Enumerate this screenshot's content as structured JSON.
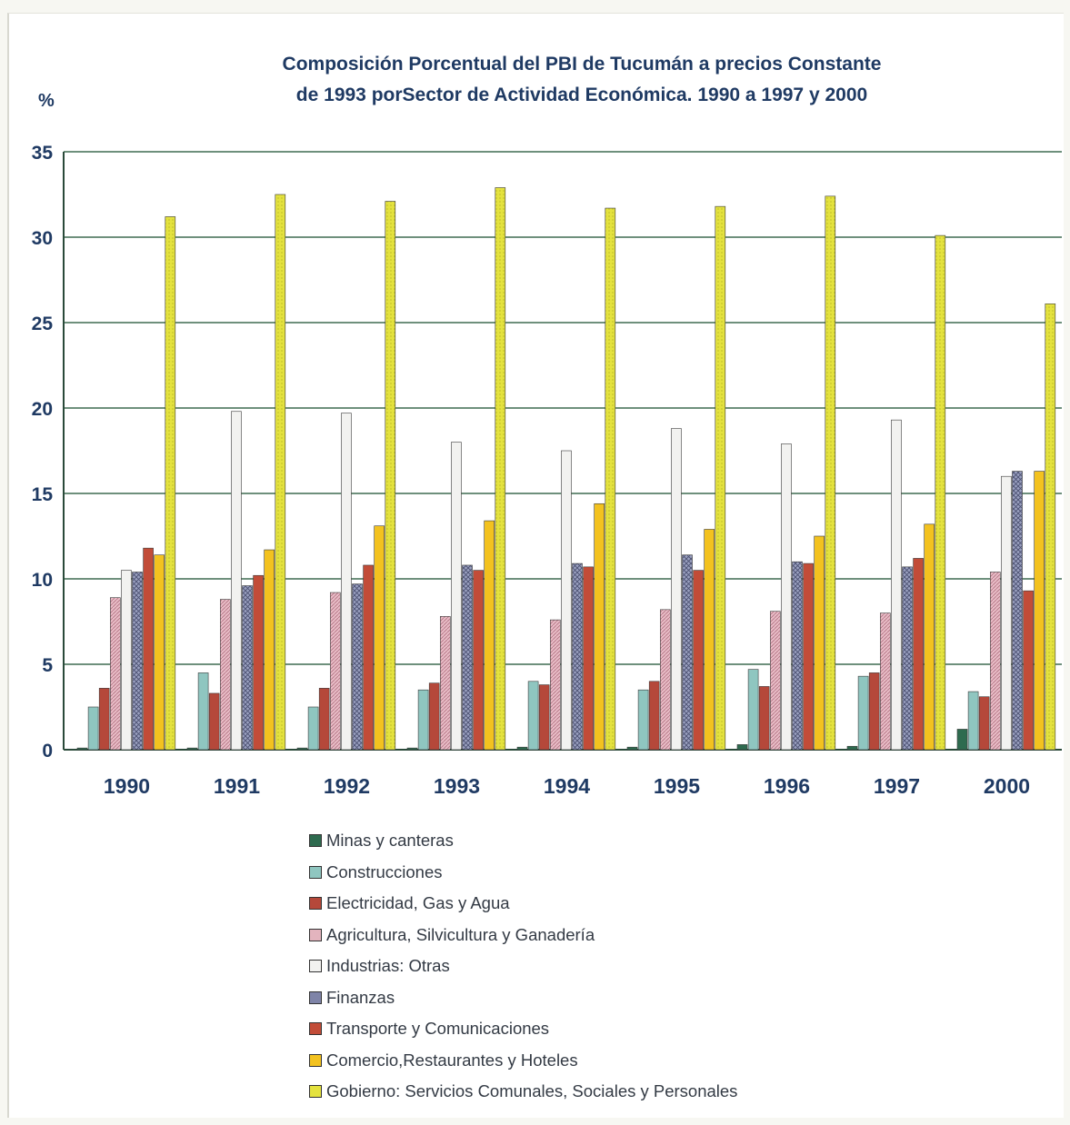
{
  "chart_data": {
    "type": "bar",
    "title_line1": "Composición Porcentual del PBI de Tucumán a precios Constante",
    "title_line2": "de 1993 porSector de Actividad Económica. 1990 a 1997 y 2000",
    "ylabel": "%",
    "ylim": [
      0,
      35
    ],
    "yticks": [
      "0",
      "5",
      "10",
      "15",
      "20",
      "25",
      "30",
      "35"
    ],
    "grid": true,
    "legend_position": "bottom",
    "categories": [
      "1990",
      "1991",
      "1992",
      "1993",
      "1994",
      "1995",
      "1996",
      "1997",
      "2000"
    ],
    "series": [
      {
        "name": "Minas y canteras",
        "color": "#2e6b4f",
        "values": [
          0.1,
          0.1,
          0.1,
          0.1,
          0.15,
          0.15,
          0.3,
          0.2,
          1.2
        ]
      },
      {
        "name": "Construcciones",
        "color": "#8fc6c0",
        "values": [
          2.5,
          4.5,
          2.5,
          3.5,
          4.0,
          3.5,
          4.7,
          4.3,
          3.4
        ]
      },
      {
        "name": "Electricidad, Gas y Agua",
        "color": "#b5483a",
        "values": [
          3.6,
          3.3,
          3.6,
          3.9,
          3.8,
          4.0,
          3.7,
          4.5,
          3.1
        ]
      },
      {
        "name": "Agricultura, Silvicultura y Ganadería",
        "color": "#e3b4be",
        "values": [
          8.9,
          8.8,
          9.2,
          7.8,
          7.6,
          8.2,
          8.1,
          8.0,
          10.4
        ]
      },
      {
        "name": "Industrias: Otras",
        "color": "#f2f2f0",
        "values": [
          10.5,
          19.8,
          19.7,
          18.0,
          17.5,
          18.8,
          17.9,
          19.3,
          16.0
        ]
      },
      {
        "name": "Finanzas",
        "color": "#7f84a8",
        "values": [
          10.4,
          9.6,
          9.7,
          10.8,
          10.9,
          11.4,
          11.0,
          10.7,
          16.3
        ]
      },
      {
        "name": "Transporte y Comunicaciones",
        "color": "#c24c38",
        "values": [
          11.8,
          10.2,
          10.8,
          10.5,
          10.7,
          10.5,
          10.9,
          11.2,
          9.3
        ]
      },
      {
        "name": "Comercio,Restaurantes y Hoteles",
        "color": "#f3c21f",
        "values": [
          11.4,
          11.7,
          13.1,
          13.4,
          14.4,
          12.9,
          12.5,
          13.2,
          16.3
        ]
      },
      {
        "name": "Gobierno: Servicios Comunales, Sociales y Personales",
        "color": "#e4e23e",
        "values": [
          31.2,
          32.5,
          32.1,
          32.9,
          31.7,
          31.8,
          32.4,
          30.1,
          26.1
        ]
      }
    ]
  }
}
